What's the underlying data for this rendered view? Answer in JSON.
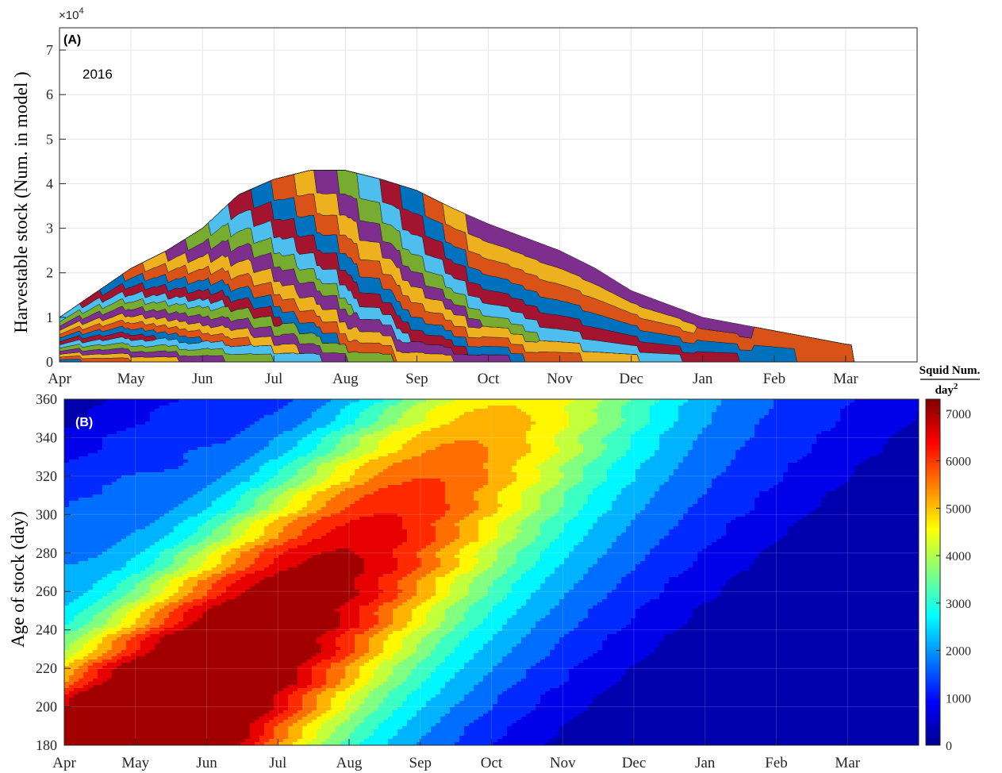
{
  "chart_data": [
    {
      "type": "area",
      "panel_label": "(A)",
      "annotation": "2016",
      "ylabel": "Harvestable stock (Num. in model )",
      "y_exponent_base": "×10",
      "y_exponent_power": "4",
      "ylim": [
        0,
        7.5
      ],
      "yticks": [
        "0",
        "1",
        "2",
        "3",
        "4",
        "5",
        "6",
        "7"
      ],
      "xticks": [
        "Apr",
        "May",
        "Jun",
        "Jul",
        "Aug",
        "Sep",
        "Oct",
        "Nov",
        "Dec",
        "Jan",
        "Feb",
        "Mar"
      ],
      "grid": true,
      "stacked": true,
      "total_envelope": {
        "x_month_index": [
          0,
          0.5,
          1,
          1.5,
          2,
          2.5,
          3,
          3.5,
          4,
          4.5,
          5,
          5.5,
          6,
          6.5,
          7,
          7.5,
          8,
          8.5,
          9,
          9.5,
          10,
          10.5,
          11,
          11.5,
          12
        ],
        "y": [
          1.0,
          1.55,
          2.1,
          2.5,
          3.0,
          3.75,
          4.1,
          4.3,
          4.3,
          4.1,
          3.85,
          3.45,
          3.1,
          2.8,
          2.5,
          2.1,
          1.6,
          1.3,
          1.0,
          0.85,
          0.7,
          0.55,
          0.4,
          0.3,
          0.2
        ]
      },
      "series_colors": [
        "#0072BD",
        "#D95319",
        "#EDB120",
        "#7E2F8E",
        "#77AC30",
        "#4DBEEE",
        "#A2142F"
      ]
    },
    {
      "type": "heatmap",
      "panel_label": "(B)",
      "ylabel": "Age of  stock (day)",
      "yticks": [
        "180",
        "200",
        "220",
        "240",
        "260",
        "280",
        "300",
        "320",
        "340",
        "360"
      ],
      "ylim": [
        180,
        360
      ],
      "xticks": [
        "Apr",
        "May",
        "Jun",
        "Jul",
        "Aug",
        "Sep",
        "Oct",
        "Nov",
        "Dec",
        "Jan",
        "Feb",
        "Mar"
      ],
      "colorbar_title": "Squid Num.",
      "colorbar_denominator": "day",
      "colorbar_power": "2",
      "colorbar_ticks": [
        "0",
        "1000",
        "2000",
        "3000",
        "4000",
        "5000",
        "6000",
        "7000"
      ],
      "clim": [
        0,
        7300
      ],
      "colormap": "jet",
      "bands": [
        {
          "start_month": -4.0,
          "start_peak": 2200,
          "end_peak": 900,
          "width_days": 34
        },
        {
          "start_month": -0.3,
          "start_peak": 3200,
          "end_peak": 2600,
          "width_days": 46
        },
        {
          "start_month": 1.3,
          "start_peak": 7300,
          "end_peak": 2800,
          "width_days": 55
        },
        {
          "start_month": 5.0,
          "start_peak": 950,
          "end_peak": 700,
          "width_days": 40
        }
      ]
    }
  ]
}
